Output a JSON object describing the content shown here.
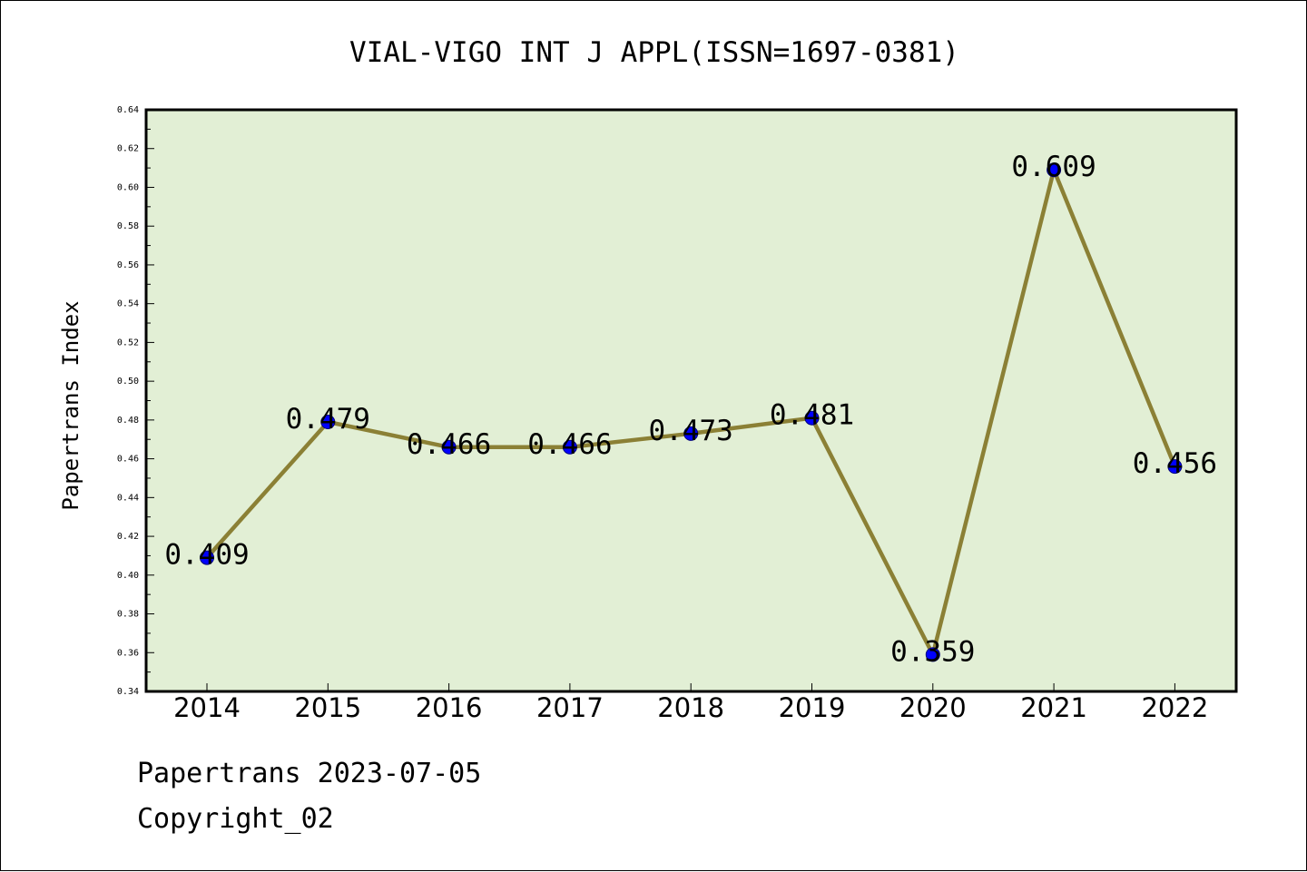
{
  "chart_data": {
    "type": "line",
    "title": "VIAL-VIGO INT J APPL(ISSN=1697-0381)",
    "xlabel": "",
    "ylabel": "Papertrans Index",
    "categories": [
      "2014",
      "2015",
      "2016",
      "2017",
      "2018",
      "2019",
      "2020",
      "2021",
      "2022"
    ],
    "values": [
      0.409,
      0.479,
      0.466,
      0.466,
      0.473,
      0.481,
      0.359,
      0.609,
      0.456
    ],
    "data_labels": [
      "0.409",
      "0.479",
      "0.466",
      "0.466",
      "0.473",
      "0.481",
      "0.359",
      "0.609",
      "0.456"
    ],
    "ylim": [
      0.34,
      0.64
    ],
    "yticks": [
      "0.34",
      "0.36",
      "0.38",
      "0.40",
      "0.42",
      "0.44",
      "0.46",
      "0.48",
      "0.50",
      "0.52",
      "0.54",
      "0.56",
      "0.58",
      "0.60",
      "0.62",
      "0.64"
    ],
    "grid": false,
    "colors": {
      "plot_background": "#e2efd5",
      "line": "#8b8035",
      "marker": "#0000ff"
    }
  },
  "footer": {
    "source": "Papertrans 2023-07-05",
    "copyright": "Copyright_02"
  }
}
